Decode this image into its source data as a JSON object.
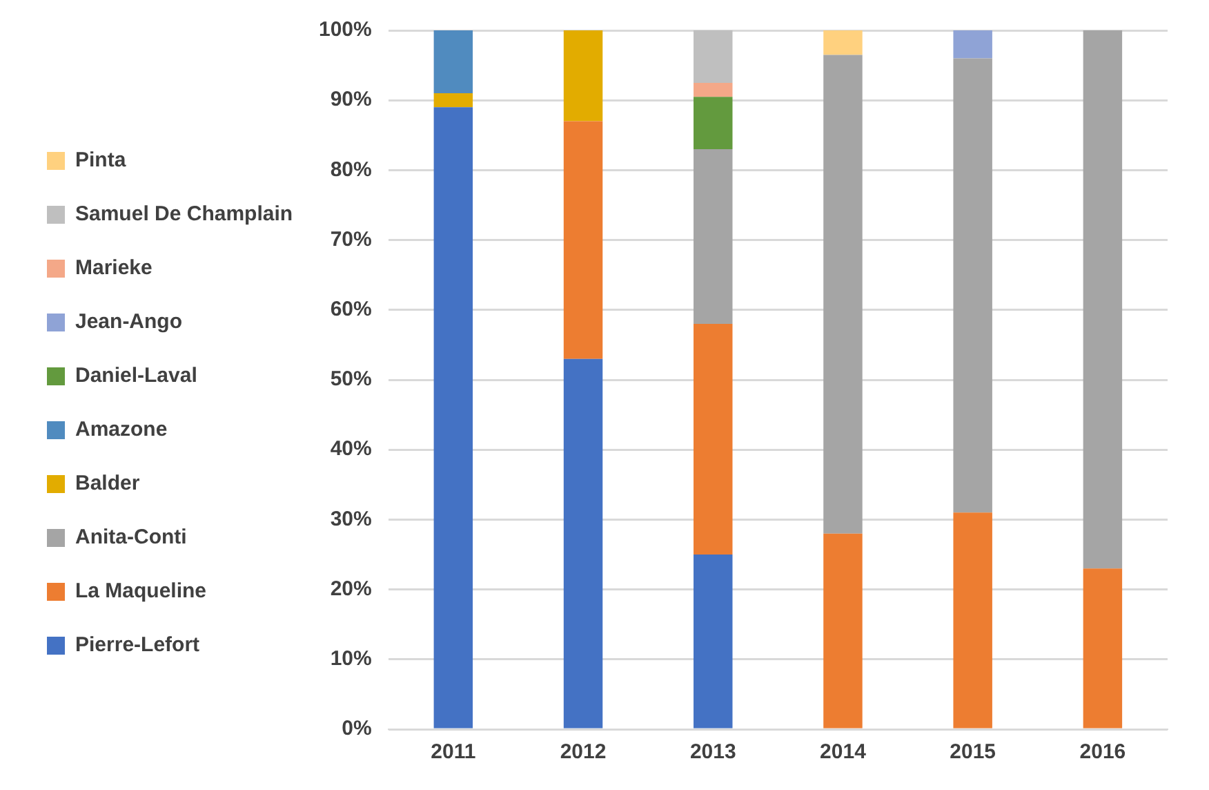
{
  "chart_data": {
    "type": "bar",
    "stacked": true,
    "categories": [
      "2011",
      "2012",
      "2013",
      "2014",
      "2015",
      "2016"
    ],
    "series": [
      {
        "name": "Pierre-Lefort",
        "color": "#4472c4",
        "values": [
          89,
          53,
          25,
          null,
          null,
          null
        ]
      },
      {
        "name": "La Maqueline",
        "color": "#ed7d31",
        "values": [
          null,
          34,
          33,
          28,
          31,
          23
        ]
      },
      {
        "name": "Anita-Conti",
        "color": "#a5a5a5",
        "values": [
          null,
          null,
          25,
          68.5,
          65,
          77
        ]
      },
      {
        "name": "Balder",
        "color": "#e2ac00",
        "values": [
          2,
          13,
          null,
          null,
          null,
          null
        ]
      },
      {
        "name": "Amazone",
        "color": "#508bbf",
        "values": [
          9,
          null,
          null,
          null,
          null,
          null
        ]
      },
      {
        "name": "Daniel-Laval",
        "color": "#639a3e",
        "values": [
          null,
          null,
          7.5,
          null,
          null,
          null
        ]
      },
      {
        "name": "Jean-Ango",
        "color": "#8fa3d6",
        "values": [
          null,
          null,
          null,
          null,
          4,
          null
        ]
      },
      {
        "name": "Marieke",
        "color": "#f4a888",
        "values": [
          null,
          null,
          2,
          null,
          null,
          null
        ]
      },
      {
        "name": "Samuel De Champlain",
        "color": "#bfbfbf",
        "values": [
          null,
          null,
          7.5,
          null,
          null,
          null
        ]
      },
      {
        "name": "Pinta",
        "color": "#ffd17f",
        "values": [
          null,
          null,
          null,
          3.5,
          null,
          null
        ]
      }
    ],
    "ylim": [
      0,
      100
    ],
    "yticks": [
      {
        "value": 0,
        "label": "0%"
      },
      {
        "value": 10,
        "label": "10%"
      },
      {
        "value": 20,
        "label": "20%"
      },
      {
        "value": 30,
        "label": "30%"
      },
      {
        "value": 40,
        "label": "40%"
      },
      {
        "value": 50,
        "label": "50%"
      },
      {
        "value": 60,
        "label": "60%"
      },
      {
        "value": 70,
        "label": "70%"
      },
      {
        "value": 80,
        "label": "80%"
      },
      {
        "value": 90,
        "label": "90%"
      },
      {
        "value": 100,
        "label": "100%"
      }
    ],
    "grid": "y",
    "legend": "left"
  }
}
